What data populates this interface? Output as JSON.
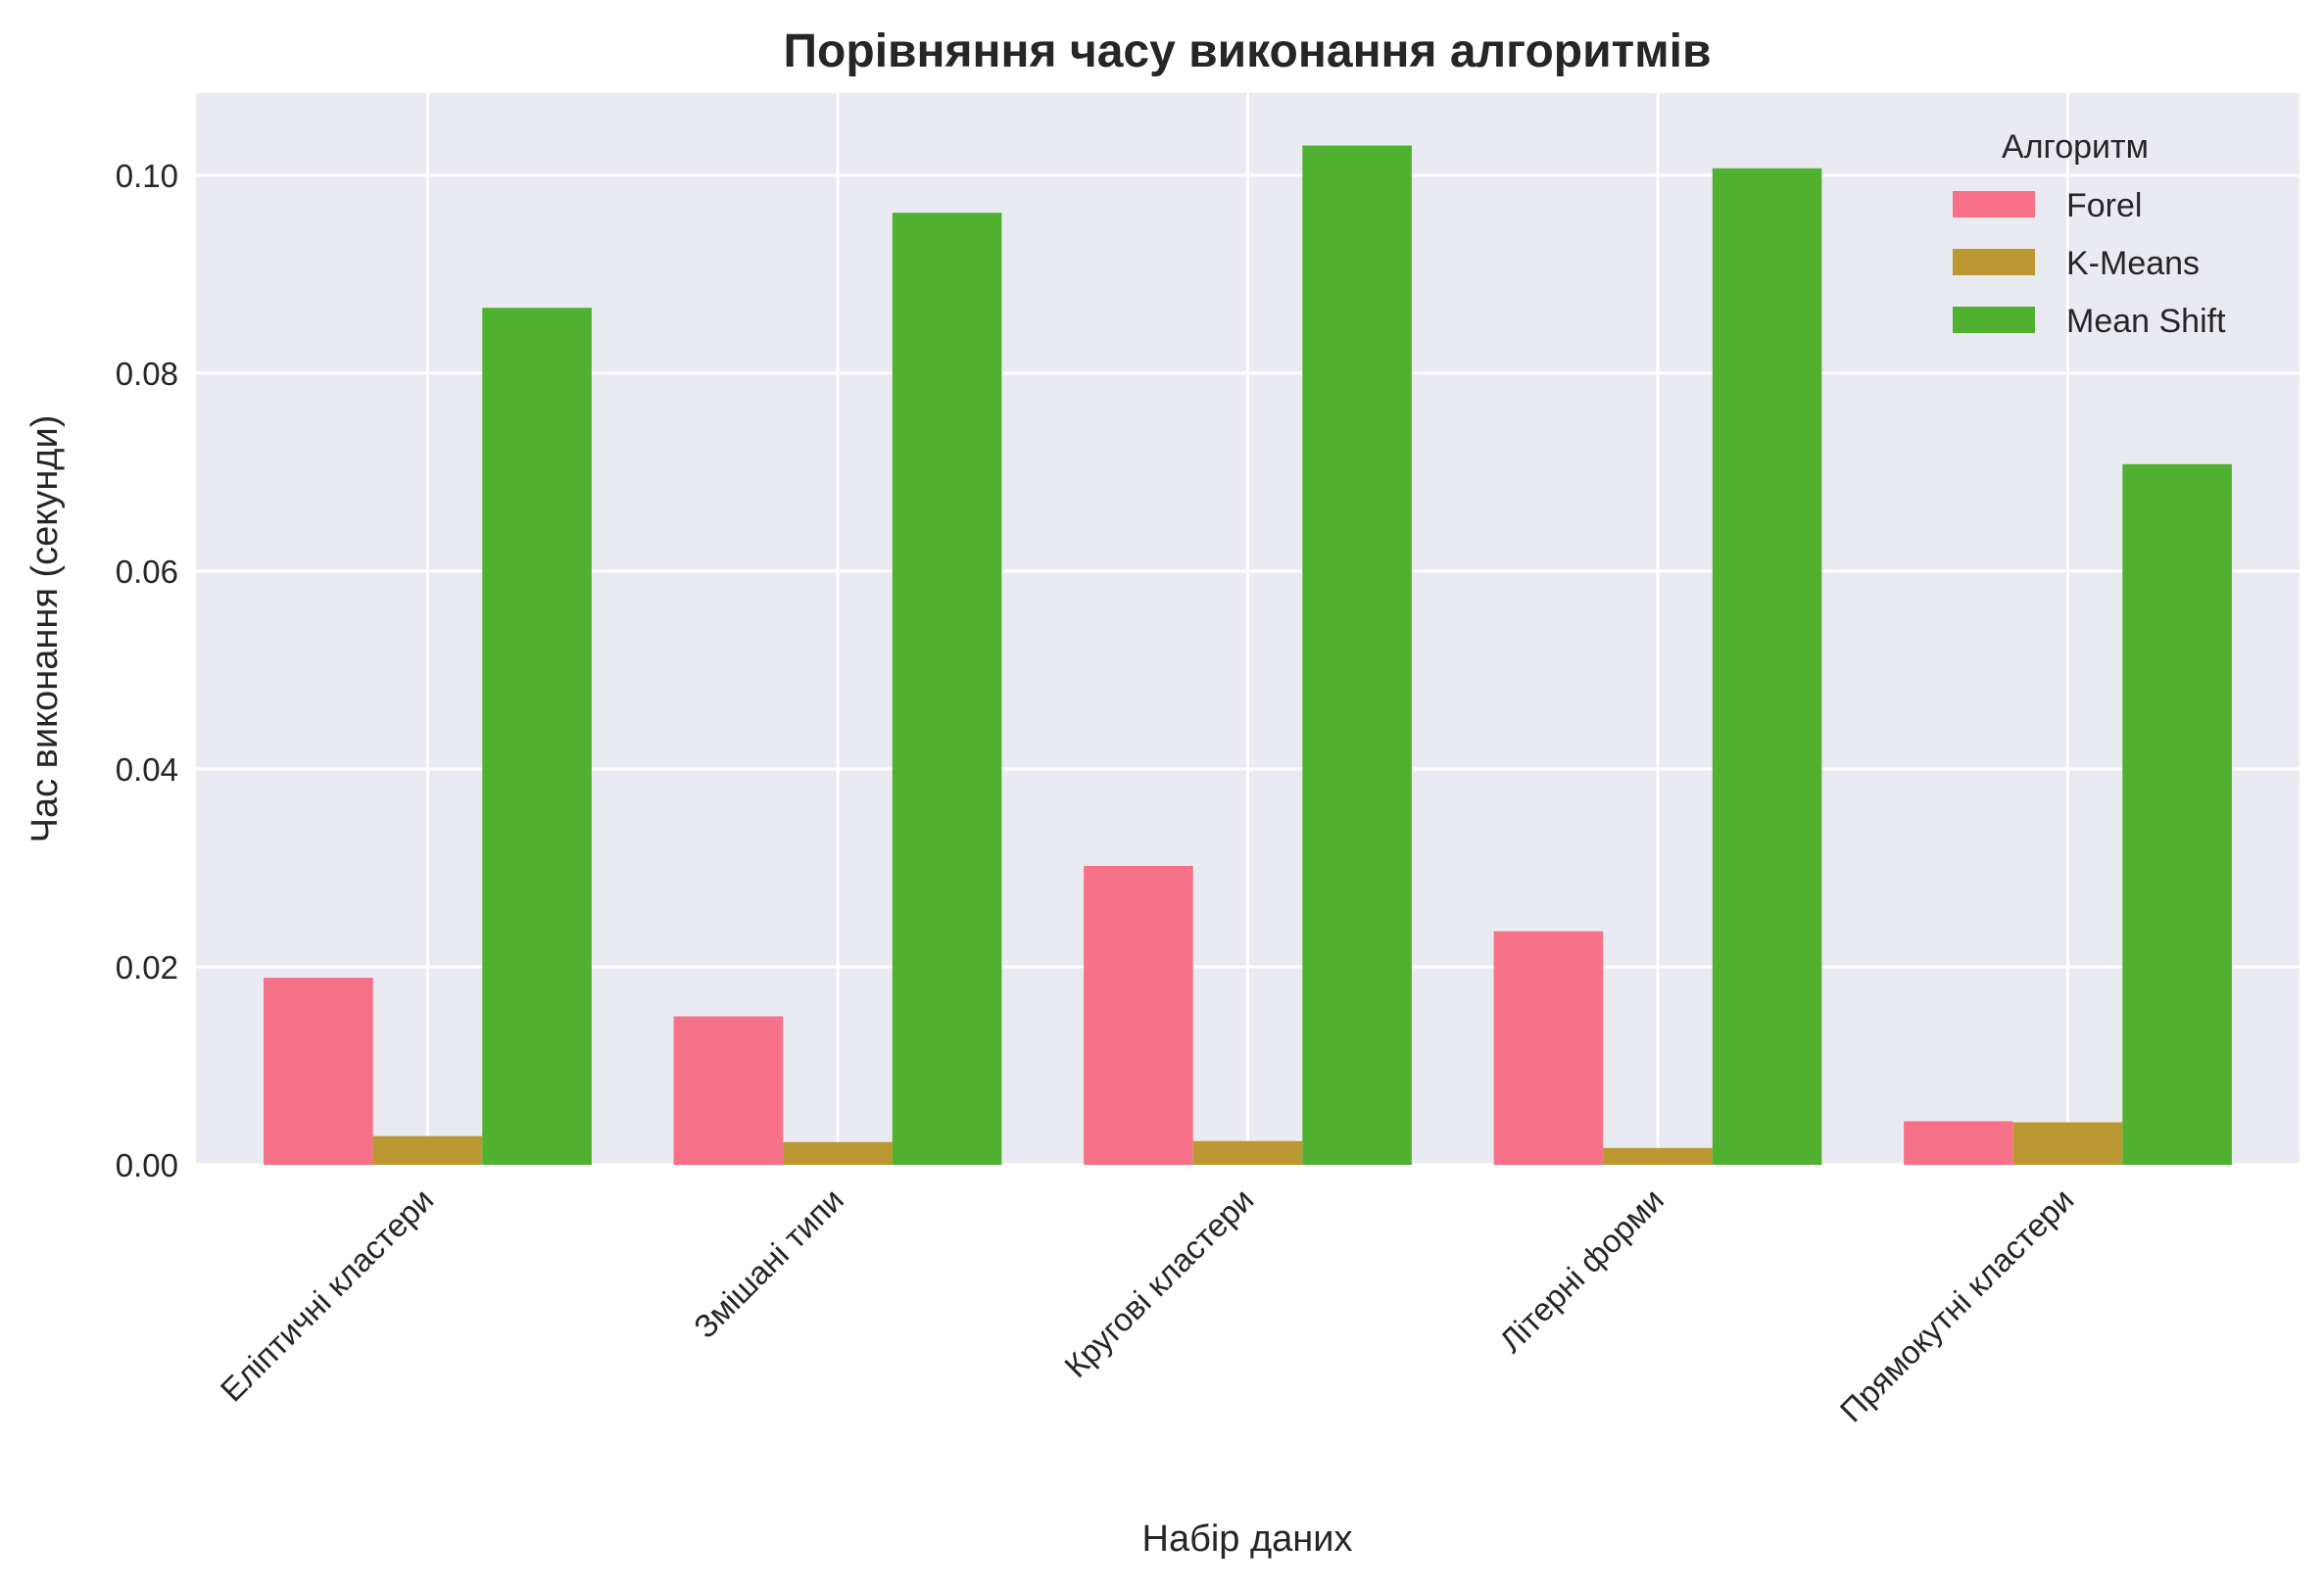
{
  "chart_data": {
    "type": "bar",
    "title": "Порівняння часу виконання алгоритмів",
    "xlabel": "Набір даних",
    "ylabel": "Час виконання (секунди)",
    "categories": [
      "Еліптичні кластери",
      "Змішані типи",
      "Кругові кластери",
      "Літерні форми",
      "Прямокутні кластери"
    ],
    "series": [
      {
        "name": "Forel",
        "color": "#f77189",
        "values": [
          0.0189,
          0.015,
          0.0302,
          0.0236,
          0.0044
        ]
      },
      {
        "name": "K-Means",
        "color": "#bb9832",
        "values": [
          0.0029,
          0.0023,
          0.0024,
          0.0017,
          0.0043
        ]
      },
      {
        "name": "Mean Shift",
        "color": "#50b131",
        "values": [
          0.0866,
          0.0962,
          0.103,
          0.1007,
          0.0708
        ]
      }
    ],
    "ylim": [
      0,
      0.1083
    ],
    "yticks": [
      0.0,
      0.02,
      0.04,
      0.06,
      0.08,
      0.1
    ],
    "ytick_labels": [
      "0.00",
      "0.02",
      "0.04",
      "0.06",
      "0.08",
      "0.10"
    ],
    "legend": {
      "title": "Алгоритм",
      "placement": "top-right"
    },
    "grid": true,
    "background": "#eaeaf2"
  }
}
